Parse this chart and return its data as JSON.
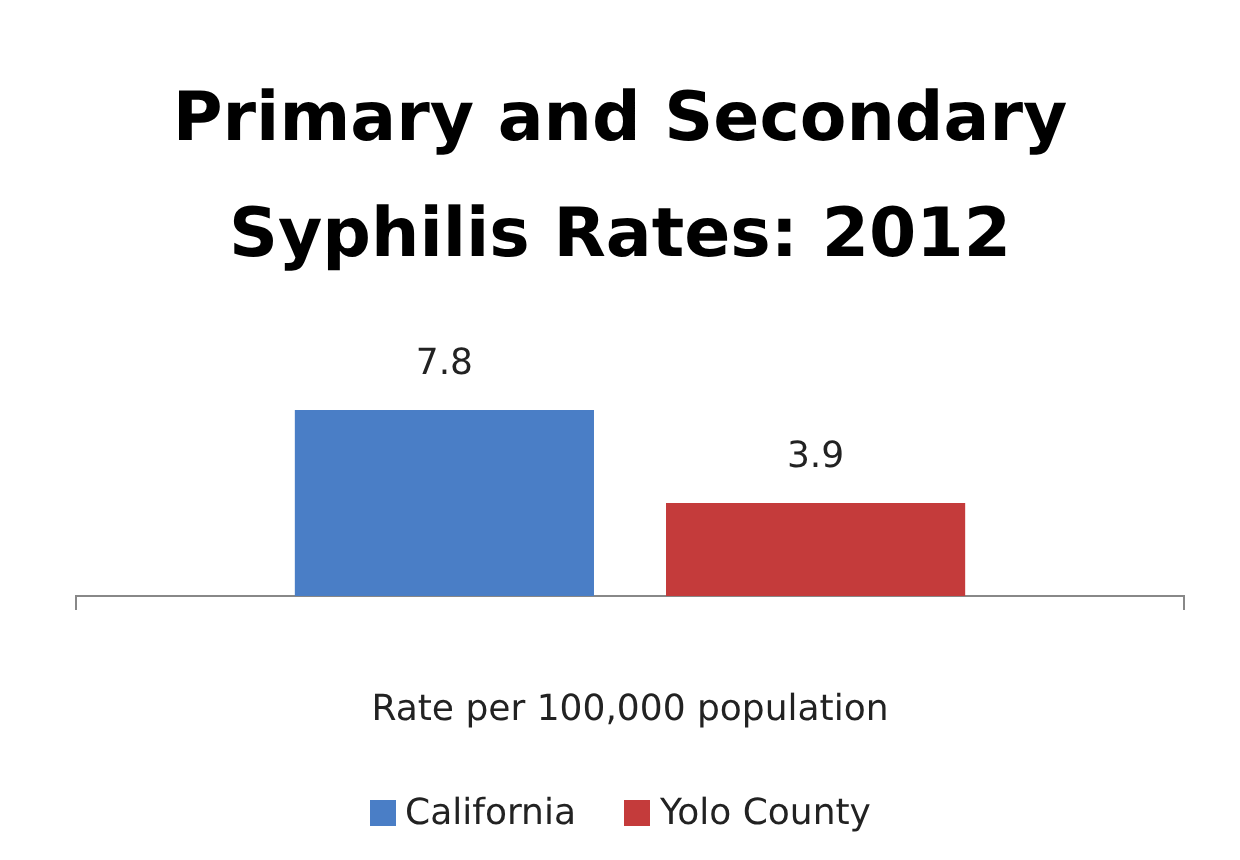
{
  "chart_data": {
    "type": "bar",
    "title": "Primary and Secondary Syphilis Rates: 2012",
    "categories": [
      null
    ],
    "xlabel": "Rate per 100,000 population",
    "series": [
      {
        "name": "California",
        "color": "#4a7ec6",
        "values": [
          7.8
        ]
      },
      {
        "name": "Yolo County",
        "color": "#c43b3b",
        "values": [
          3.9
        ]
      }
    ],
    "data_labels": true,
    "legend": "bottom"
  }
}
